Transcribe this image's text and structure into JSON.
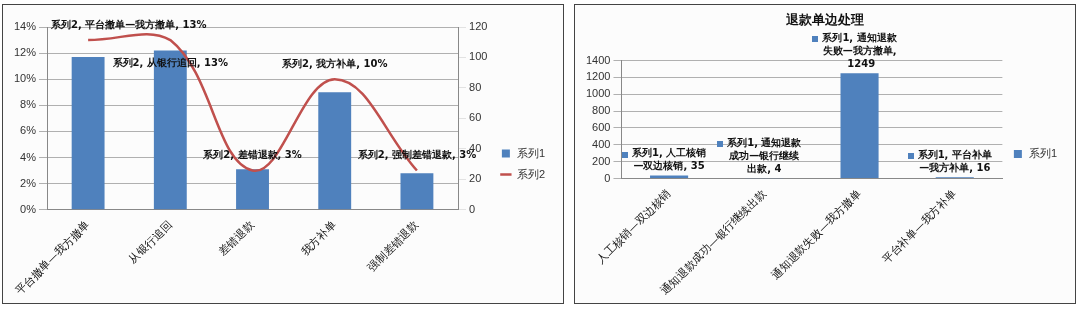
{
  "chart_data": [
    {
      "type": "bar",
      "categories": [
        "平台撤单—我方撤单",
        "从银行追回",
        "差错退款",
        "我方补单",
        "强制差错退款"
      ],
      "series": [
        {
          "name": "系列1",
          "color": "#4f81bd",
          "values": [
            11.7,
            12.2,
            3.1,
            9.0,
            2.8
          ]
        },
        {
          "name": "系列2",
          "type": "line",
          "color": "#c0504d",
          "values": [
            13,
            13,
            3,
            10,
            3
          ],
          "value_labels": [
            "系列2, 平台撤单—我方撤单, 13%",
            "系列2, 从银行追回, 13%",
            "系列2, 差错退款, 3%",
            "系列2, 我方补单, 10%",
            "系列2, 强制差错退款, 3%"
          ]
        }
      ],
      "ylim": [
        0,
        14
      ],
      "yticks": [
        {
          "value": 0,
          "label": "0%"
        },
        {
          "value": 2,
          "label": "2%"
        },
        {
          "value": 4,
          "label": "4%"
        },
        {
          "value": 6,
          "label": "6%"
        },
        {
          "value": 8,
          "label": "8%"
        },
        {
          "value": 10,
          "label": "10%"
        },
        {
          "value": 12,
          "label": "12%"
        },
        {
          "value": 14,
          "label": "14%"
        }
      ],
      "y2lim": [
        0,
        120
      ],
      "y2ticks": [
        0,
        20,
        40,
        60,
        80,
        100,
        120
      ],
      "grid": "y",
      "legend": "right",
      "marker": "none"
    },
    {
      "type": "bar",
      "title": "退款单边处理",
      "categories": [
        "人工核销—双边核销",
        "通知退款成功—银行继续出款",
        "通知退款失败—我方撤单",
        "平台补单—我方补单"
      ],
      "series": [
        {
          "name": "系列1",
          "color": "#4f81bd",
          "values": [
            35,
            4,
            1249,
            16
          ],
          "value_labels": [
            "系列1, 人工核销—双边核销, 35",
            "系列1, 通知退款成功—银行继续出款, 4",
            "系列1, 通知退款失败—我方撤单, 1249",
            "系列1, 平台补单—我方补单, 16"
          ]
        }
      ],
      "ylim": [
        0,
        1400
      ],
      "yticks": [
        0,
        200,
        400,
        600,
        800,
        1000,
        1200,
        1400
      ],
      "grid": "y",
      "legend": "right"
    }
  ]
}
